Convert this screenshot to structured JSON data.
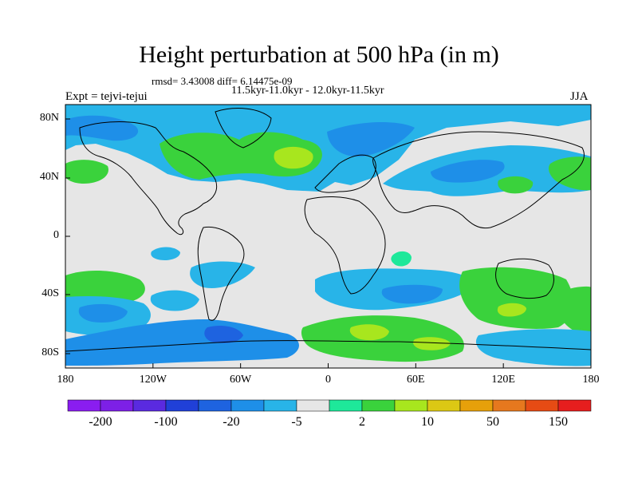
{
  "title": "Height perturbation at 500 hPa (in m)",
  "stats": "rmsd= 3.43008  diff= 6.14475e-09",
  "period": "11.5kyr-11.0kyr - 12.0kyr-11.5kyr",
  "experiment": "Expt = tejvi-tejui",
  "season": "JJA",
  "map": {
    "lon_ticks": [
      "180",
      "120W",
      "60W",
      "0",
      "60E",
      "120E",
      "180"
    ],
    "lat_ticks": [
      "80N",
      "40N",
      "0",
      "40S",
      "80S"
    ],
    "background_color": "#e6e6e6"
  },
  "colorbar": {
    "labels": [
      "-200",
      "-100",
      "-20",
      "-5",
      "2",
      "10",
      "50",
      "150"
    ],
    "colors": [
      "#8a1df0",
      "#7d20e6",
      "#5a2ae0",
      "#2040d8",
      "#1e63e0",
      "#1e8fe8",
      "#28b4e8",
      "#e6e6e6",
      "#1ee89a",
      "#3ad23c",
      "#a8e61e",
      "#dcc814",
      "#e6a00a",
      "#e6781e",
      "#e64b14",
      "#e61e1e"
    ]
  }
}
